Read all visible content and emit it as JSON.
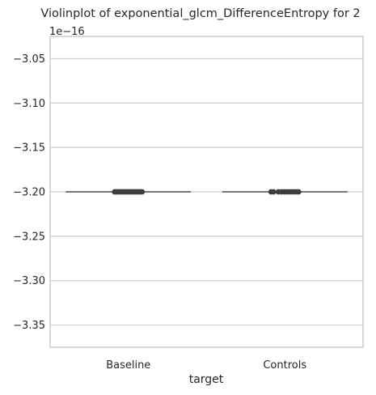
{
  "chart_data": {
    "type": "violin",
    "title": "Violinplot of exponential_glcm_DifferenceEntropy for 2",
    "xlabel": "target",
    "ylabel": "",
    "offset_text": "1e−16",
    "categories": [
      "Baseline",
      "Controls"
    ],
    "values": [
      -3.2,
      -3.2
    ],
    "y_scale_factor": 1e-16,
    "ylim": [
      -3.375,
      -3.025
    ],
    "yticks": [
      -3.05,
      -3.1,
      -3.15,
      -3.2,
      -3.25,
      -3.3,
      -3.35
    ],
    "ytick_labels": [
      "−3.05",
      "−3.10",
      "−3.15",
      "−3.20",
      "−3.25",
      "−3.30",
      "−3.35"
    ],
    "grid": true,
    "colors": {
      "line": "#4d4d4d",
      "points": "#3d3d3d",
      "grid": "#cccccc",
      "axes": "#cccccc"
    }
  }
}
